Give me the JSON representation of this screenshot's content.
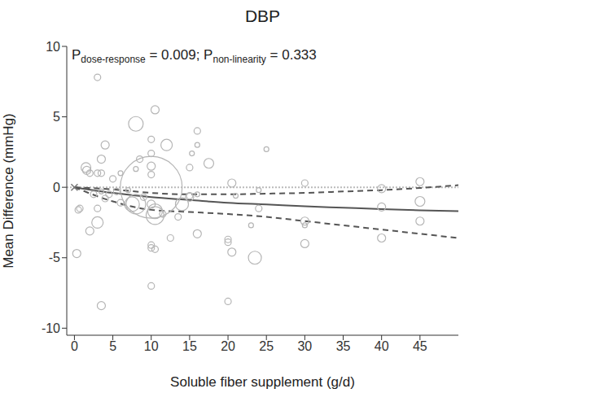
{
  "chart_data": {
    "type": "scatter",
    "title": "DBP",
    "x_label": "Soluble fiber supplement (g/d)",
    "y_label": "Mean Difference (mmHg)",
    "annotation": [
      [
        "P",
        "dose-response",
        " = 0.009; "
      ],
      [
        "P",
        "non-linearity",
        " = 0.333"
      ]
    ],
    "xlim": [
      -1,
      50
    ],
    "xticks": [
      0,
      5,
      10,
      15,
      20,
      25,
      30,
      35,
      40,
      45
    ],
    "ylim": [
      -10.5,
      10
    ],
    "yticks": [
      -10,
      -5,
      0,
      5,
      10
    ],
    "grid": false,
    "reference_y": 0,
    "reference_point": {
      "x": 0,
      "y": 0,
      "marker": "x",
      "color": "#777777"
    },
    "series": [
      {
        "type": "scatter",
        "marker": "circle",
        "color": "#b5b5b5",
        "x": [
          0.3,
          0.5,
          0.7,
          1.5,
          1.6,
          2,
          2,
          2.5,
          3,
          3,
          3,
          3,
          3.5,
          3.5,
          3.5,
          3.5,
          4,
          4,
          4.5,
          5,
          5.5,
          6,
          6,
          7,
          7.5,
          8,
          8,
          8,
          8.5,
          9,
          10,
          10,
          10,
          10,
          10,
          10,
          10,
          10,
          10,
          10.5,
          10.5,
          10.5,
          10.5,
          11.5,
          12,
          12.5,
          13.5,
          14,
          15,
          15,
          15,
          15.3,
          16,
          16,
          16,
          16,
          17.5,
          20,
          20,
          20,
          20.5,
          20.5,
          21,
          23,
          23.5,
          24,
          25,
          24,
          30,
          30,
          30,
          30,
          40,
          40,
          40,
          45,
          45,
          45
        ],
        "values": [
          -4.7,
          -1.6,
          -1.5,
          1.4,
          1.2,
          1,
          -3.1,
          -0.5,
          7.8,
          1,
          -1.5,
          -2.5,
          2,
          1,
          -8.4,
          -0.3,
          3,
          -0.8,
          -0.5,
          0.6,
          -0.3,
          1,
          -1.1,
          -0.2,
          -1.2,
          -1.2,
          1.3,
          4.5,
          2,
          -0.7,
          0,
          3.4,
          2.4,
          1.5,
          0.9,
          -1.2,
          -4.1,
          -4.3,
          -7,
          5.5,
          -2,
          -1.7,
          -4.4,
          -1.9,
          3,
          -3.6,
          -2.1,
          -1.2,
          -0.7,
          -0.6,
          1.4,
          2.4,
          4,
          3,
          -3.3,
          -0.5,
          1.7,
          -3.7,
          -3.9,
          -8.1,
          0.3,
          -4.6,
          -0.6,
          -2.7,
          -5,
          -1.5,
          2.7,
          -0.2,
          0.3,
          -2.4,
          -4,
          -2.7,
          -0.1,
          -1.4,
          -3.6,
          0.4,
          -1,
          -2.4
        ],
        "size": [
          5,
          4,
          4,
          6,
          5,
          4,
          5,
          4,
          4,
          4,
          4,
          7,
          5,
          4,
          5,
          3,
          5,
          4,
          4,
          4,
          4,
          3,
          4,
          3,
          9,
          12,
          3,
          9,
          4,
          4,
          38,
          4,
          4,
          5,
          4,
          5,
          4,
          4,
          4,
          5,
          11,
          9,
          4,
          4,
          7,
          4,
          4,
          8,
          5,
          4,
          4,
          3,
          4,
          3,
          5,
          3,
          6,
          4,
          4,
          4,
          5,
          5,
          3,
          3,
          8,
          4,
          3,
          3,
          4,
          5,
          5,
          3,
          5,
          5,
          5,
          5,
          6,
          5
        ]
      },
      {
        "type": "line",
        "line_style": "solid",
        "color": "#555555",
        "x": [
          0,
          5,
          10,
          15,
          20,
          25,
          30,
          35,
          40,
          45,
          50
        ],
        "values": [
          0,
          -0.4,
          -0.7,
          -0.9,
          -1.1,
          -1.22,
          -1.35,
          -1.45,
          -1.55,
          -1.63,
          -1.7
        ]
      },
      {
        "type": "line",
        "line_style": "dashed",
        "color": "#555555",
        "x": [
          0,
          5,
          10,
          15,
          20,
          25,
          30,
          35,
          40,
          45,
          50
        ],
        "values": [
          0,
          -1.0,
          -1.6,
          -1.75,
          -1.9,
          -2.1,
          -2.4,
          -2.7,
          -3.0,
          -3.3,
          -3.6
        ]
      },
      {
        "type": "line",
        "line_style": "dashed",
        "color": "#555555",
        "x": [
          0,
          5,
          10,
          15,
          20,
          25,
          30,
          35,
          40,
          45,
          50
        ],
        "values": [
          0,
          -0.15,
          -0.4,
          -0.5,
          -0.5,
          -0.45,
          -0.4,
          -0.3,
          -0.2,
          -0.05,
          0.15
        ]
      }
    ]
  }
}
